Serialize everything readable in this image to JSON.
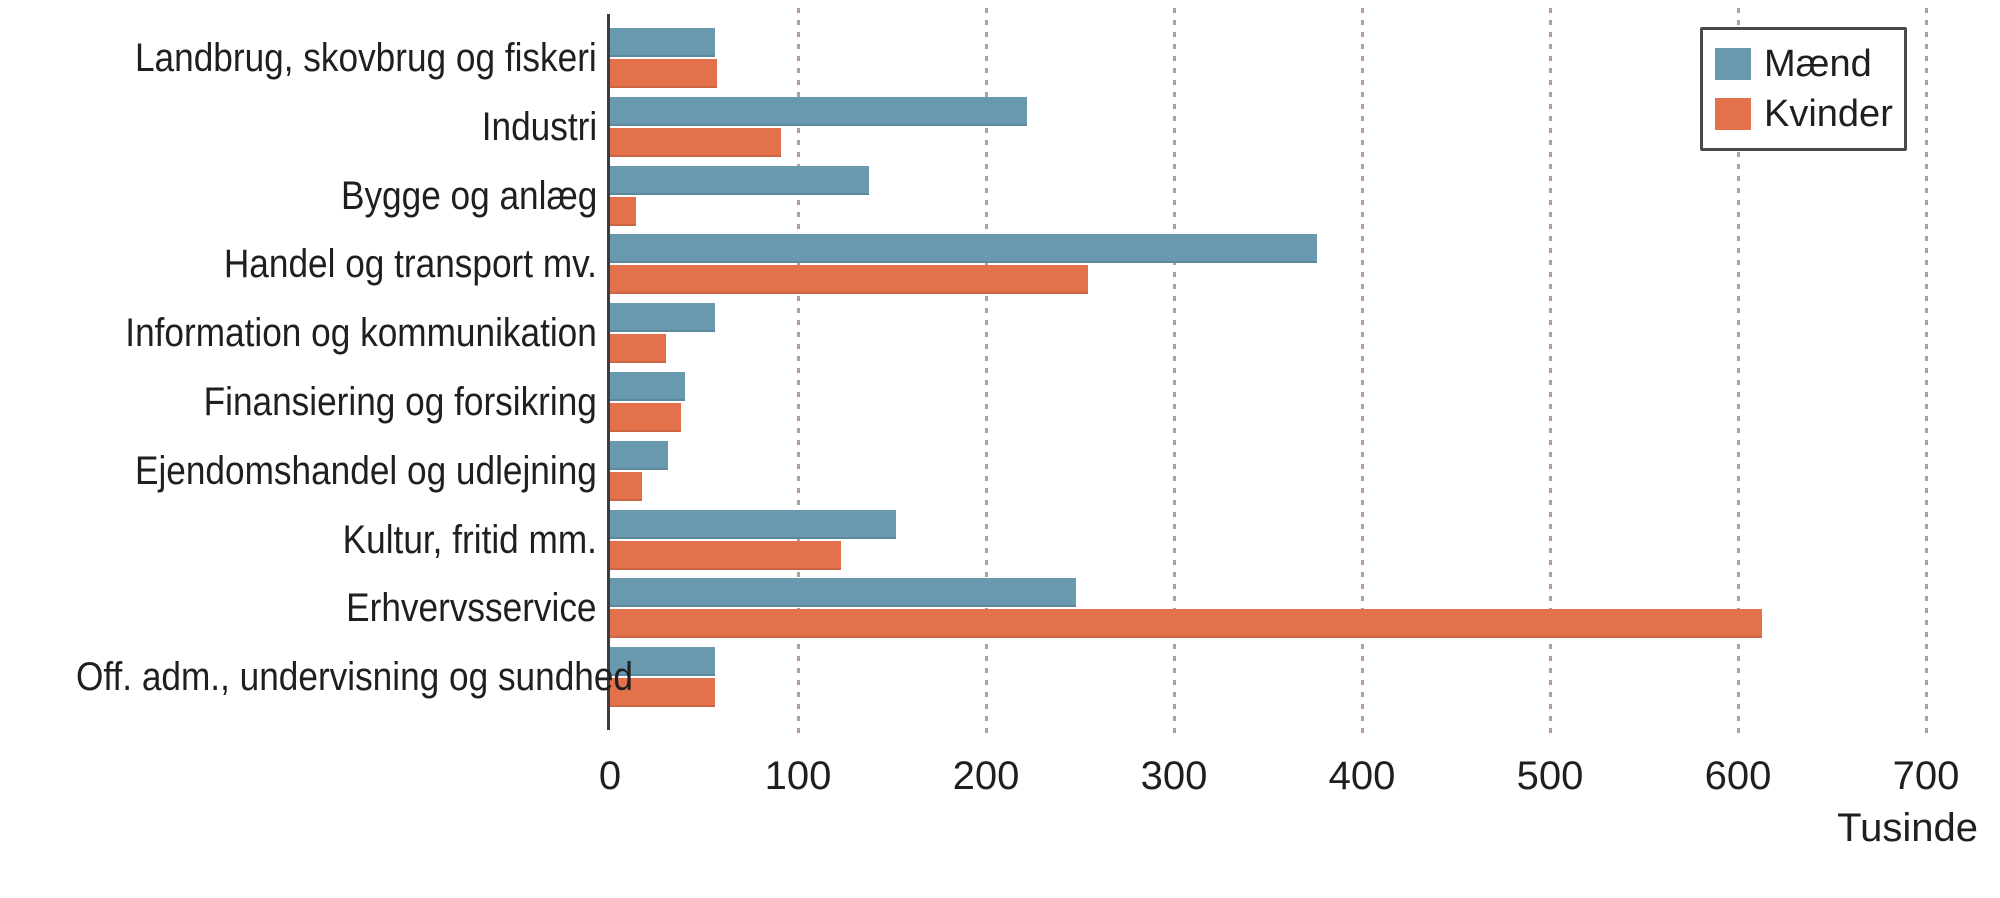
{
  "figure": {
    "unit_label": "Tusinde",
    "colors": {
      "maend": "#6899af",
      "kvinder": "#e3714c",
      "gridline": "#b89e95",
      "axis": "#3c3c3c",
      "text": "#1f1f1f",
      "legend_border": "#4a4a4a"
    }
  },
  "legend": {
    "items": [
      {
        "label": "Mænd",
        "color_key": "maend"
      },
      {
        "label": "Kvinder",
        "color_key": "kvinder"
      }
    ]
  },
  "chart_data": {
    "type": "bar",
    "orientation": "horizontal",
    "title": "",
    "xlabel": "Tusinde",
    "ylabel": "",
    "xlim": [
      0,
      700
    ],
    "xticks": [
      0,
      100,
      200,
      300,
      400,
      500,
      600,
      700
    ],
    "grid": "vertical-dotted",
    "legend_position": "top-right",
    "categories": [
      "Landbrug, skovbrug og fiskeri",
      "Industri",
      "Bygge og anlæg",
      "Handel og transport mv.",
      "Information og kommunikation",
      "Finansiering og forsikring",
      "Ejendomshandel og udlejning",
      "Kultur, fritid mm.",
      "Erhvervsservice",
      "Off. adm., undervisning og sundhed"
    ],
    "series": [
      {
        "name": "Mænd",
        "values": [
          56,
          222,
          138,
          376,
          56,
          40,
          31,
          152,
          248,
          56
        ]
      },
      {
        "name": "Kvinder",
        "values": [
          57,
          91,
          14,
          254,
          30,
          38,
          17,
          123,
          613,
          56
        ]
      }
    ]
  }
}
